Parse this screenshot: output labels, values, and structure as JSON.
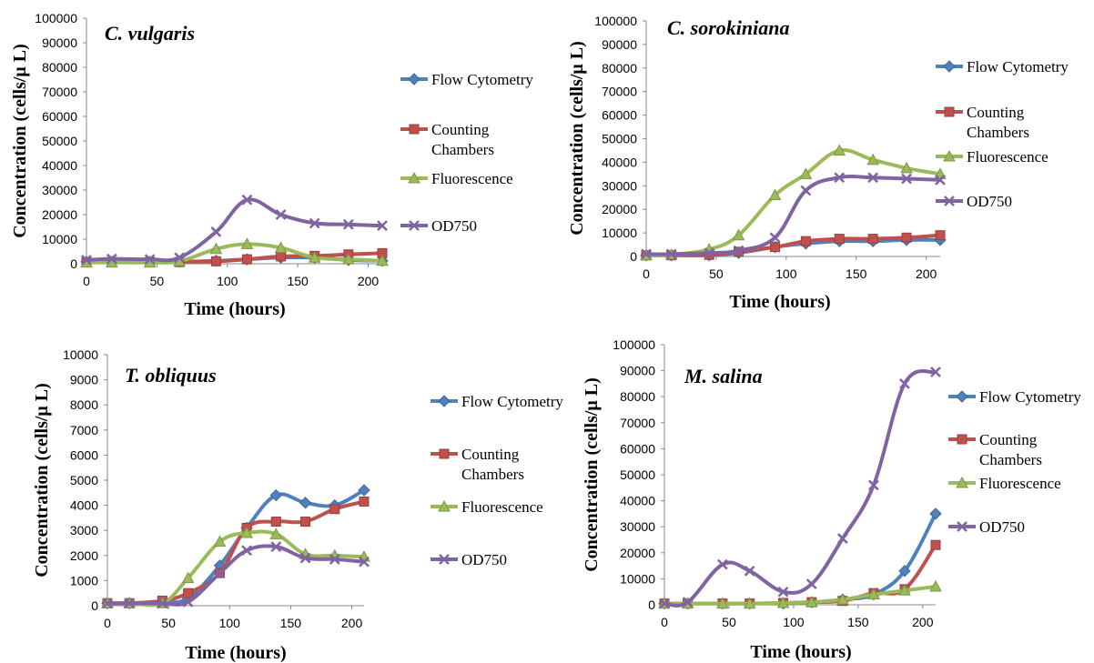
{
  "chart_data": [
    {
      "type": "line",
      "title": "C. vulgaris",
      "xlabel": "Time (hours)",
      "ylabel": "Concentration (cells/μ L)",
      "xlim": [
        0,
        210
      ],
      "ylim": [
        0,
        100000
      ],
      "x_ticks": [
        "0",
        "50",
        "100",
        "150",
        "200"
      ],
      "y_ticks": [
        "0",
        "10000",
        "20000",
        "30000",
        "40000",
        "50000",
        "60000",
        "70000",
        "80000",
        "90000",
        "100000"
      ],
      "series": [
        {
          "name": "Flow Cytometry",
          "color": "#4f81bd",
          "marker": "diamond",
          "x": [
            0,
            18,
            45,
            66,
            92,
            114,
            138,
            162,
            186,
            210
          ],
          "y": [
            800,
            800,
            800,
            800,
            1200,
            1800,
            2500,
            2500,
            1500,
            1200
          ]
        },
        {
          "name": "Counting Chambers",
          "color": "#c0504d",
          "marker": "square",
          "x": [
            0,
            18,
            45,
            66,
            92,
            114,
            138,
            162,
            186,
            210
          ],
          "y": [
            700,
            700,
            700,
            700,
            1000,
            1800,
            3000,
            3200,
            3800,
            4300
          ]
        },
        {
          "name": "Fluorescence",
          "color": "#9bbb59",
          "marker": "triangle",
          "x": [
            0,
            18,
            45,
            66,
            92,
            114,
            138,
            162,
            186,
            210
          ],
          "y": [
            500,
            500,
            500,
            1000,
            6000,
            8000,
            6500,
            2500,
            1800,
            1200
          ]
        },
        {
          "name": "OD750",
          "color": "#8064a2",
          "marker": "x",
          "x": [
            0,
            18,
            45,
            66,
            92,
            114,
            138,
            162,
            186,
            210
          ],
          "y": [
            1500,
            2000,
            1800,
            2500,
            13000,
            26000,
            20000,
            16500,
            16000,
            15500
          ]
        }
      ]
    },
    {
      "type": "line",
      "title": "C. sorokiniana",
      "xlabel": "Time (hours)",
      "ylabel": "Concentration (cells/μ L)",
      "xlim": [
        0,
        210
      ],
      "ylim": [
        0,
        100000
      ],
      "x_ticks": [
        "0",
        "50",
        "100",
        "150",
        "200"
      ],
      "y_ticks": [
        "0",
        "10000",
        "20000",
        "30000",
        "40000",
        "50000",
        "60000",
        "70000",
        "80000",
        "90000",
        "100000"
      ],
      "series": [
        {
          "name": "Flow Cytometry",
          "color": "#4f81bd",
          "marker": "diamond",
          "x": [
            0,
            18,
            45,
            66,
            92,
            114,
            138,
            162,
            186,
            210
          ],
          "y": [
            500,
            500,
            500,
            1500,
            4000,
            5500,
            6500,
            6500,
            7000,
            7000
          ]
        },
        {
          "name": "Counting Chambers",
          "color": "#c0504d",
          "marker": "square",
          "x": [
            0,
            18,
            45,
            66,
            92,
            114,
            138,
            162,
            186,
            210
          ],
          "y": [
            500,
            500,
            700,
            2000,
            4000,
            6500,
            7500,
            7500,
            8000,
            9000
          ]
        },
        {
          "name": "Fluorescence",
          "color": "#9bbb59",
          "marker": "triangle",
          "x": [
            0,
            18,
            45,
            66,
            92,
            114,
            138,
            162,
            186,
            210
          ],
          "y": [
            500,
            800,
            3000,
            9000,
            26000,
            35000,
            45000,
            41000,
            37500,
            35000
          ]
        },
        {
          "name": "OD750",
          "color": "#8064a2",
          "marker": "x",
          "x": [
            0,
            18,
            45,
            66,
            92,
            114,
            138,
            162,
            186,
            210
          ],
          "y": [
            1000,
            1000,
            1500,
            2500,
            8000,
            28000,
            33500,
            33500,
            33000,
            32500
          ]
        }
      ]
    },
    {
      "type": "line",
      "title": "T. obliquus",
      "xlabel": "Time (hours)",
      "ylabel": "Concentration (cells/μ L)",
      "xlim": [
        0,
        210
      ],
      "ylim": [
        0,
        10000
      ],
      "x_ticks": [
        "0",
        "50",
        "100",
        "150",
        "200"
      ],
      "y_ticks": [
        "0",
        "1000",
        "2000",
        "3000",
        "4000",
        "5000",
        "6000",
        "7000",
        "8000",
        "9000",
        "10000"
      ],
      "series": [
        {
          "name": "Flow Cytometry",
          "color": "#4f81bd",
          "marker": "diamond",
          "x": [
            0,
            18,
            45,
            66,
            92,
            114,
            138,
            162,
            186,
            210
          ],
          "y": [
            100,
            100,
            150,
            300,
            1600,
            3100,
            4400,
            4100,
            4000,
            4600
          ]
        },
        {
          "name": "Counting Chambers",
          "color": "#c0504d",
          "marker": "square",
          "x": [
            0,
            18,
            45,
            66,
            92,
            114,
            138,
            162,
            186,
            210
          ],
          "y": [
            100,
            100,
            200,
            500,
            1300,
            3100,
            3350,
            3350,
            3850,
            4150
          ]
        },
        {
          "name": "Fluorescence",
          "color": "#9bbb59",
          "marker": "triangle",
          "x": [
            0,
            18,
            45,
            66,
            92,
            114,
            138,
            162,
            186,
            210
          ],
          "y": [
            100,
            100,
            100,
            1100,
            2550,
            2900,
            2850,
            2050,
            2000,
            1950
          ]
        },
        {
          "name": "OD750",
          "color": "#8064a2",
          "marker": "x",
          "x": [
            0,
            18,
            45,
            66,
            92,
            114,
            138,
            162,
            186,
            210
          ],
          "y": [
            100,
            100,
            100,
            150,
            1300,
            2200,
            2350,
            1900,
            1850,
            1750
          ]
        }
      ]
    },
    {
      "type": "line",
      "title": "M. salina",
      "xlabel": "Time (hours)",
      "ylabel": "Concentration (cells/μ L)",
      "xlim": [
        0,
        210
      ],
      "ylim": [
        0,
        100000
      ],
      "x_ticks": [
        "0",
        "50",
        "100",
        "150",
        "200"
      ],
      "y_ticks": [
        "0",
        "10000",
        "20000",
        "30000",
        "40000",
        "50000",
        "60000",
        "70000",
        "80000",
        "90000",
        "100000"
      ],
      "series": [
        {
          "name": "Flow Cytometry",
          "color": "#4f81bd",
          "marker": "diamond",
          "x": [
            0,
            18,
            45,
            66,
            92,
            114,
            138,
            162,
            186,
            210
          ],
          "y": [
            500,
            500,
            500,
            500,
            500,
            1000,
            2000,
            4000,
            13000,
            35000
          ]
        },
        {
          "name": "Counting Chambers",
          "color": "#c0504d",
          "marker": "square",
          "x": [
            0,
            18,
            45,
            66,
            92,
            114,
            138,
            162,
            186,
            210
          ],
          "y": [
            500,
            500,
            500,
            500,
            700,
            1000,
            1500,
            4500,
            6000,
            23000
          ]
        },
        {
          "name": "Fluorescence",
          "color": "#9bbb59",
          "marker": "triangle",
          "x": [
            0,
            18,
            45,
            66,
            92,
            114,
            138,
            162,
            186,
            210
          ],
          "y": [
            500,
            500,
            500,
            500,
            700,
            1000,
            2000,
            4000,
            5500,
            7000
          ]
        },
        {
          "name": "OD750",
          "color": "#8064a2",
          "marker": "x",
          "x": [
            0,
            18,
            45,
            66,
            92,
            114,
            138,
            162,
            186,
            210
          ],
          "y": [
            500,
            1000,
            15500,
            13000,
            5000,
            8000,
            25500,
            46000,
            85000,
            89500
          ]
        }
      ]
    }
  ]
}
